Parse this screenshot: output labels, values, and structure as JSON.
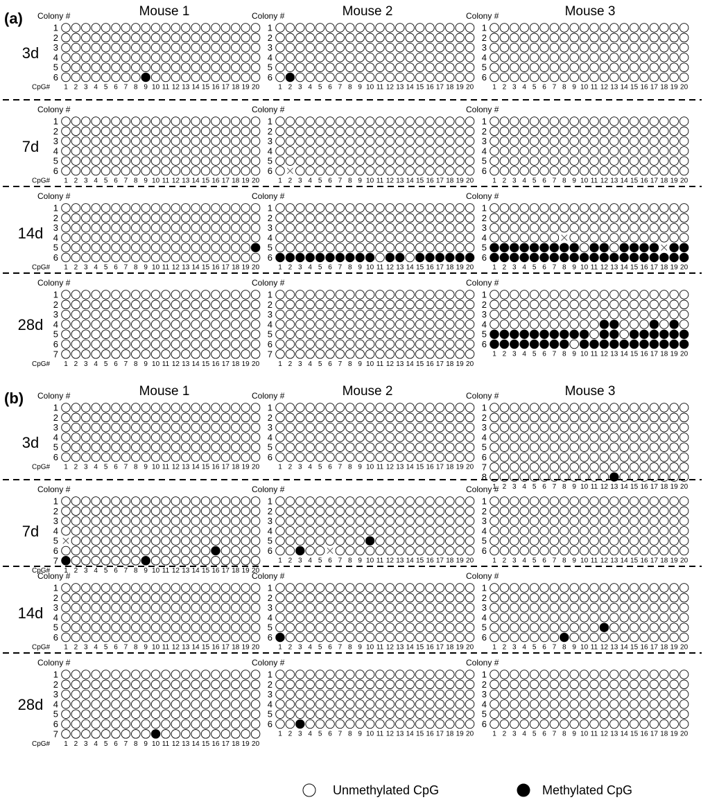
{
  "figure": {
    "colony_label": "Colony #",
    "cpg_label": "CpG#",
    "mouse_labels": [
      "Mouse 1",
      "Mouse 2",
      "Mouse 3"
    ],
    "cpg_sites": 20,
    "legend": {
      "unmethylated": "Unmethylated CpG",
      "methylated": "Methylated CpG"
    },
    "panels": [
      {
        "label": "(a)",
        "blocks": [
          {
            "timepoint": "3d",
            "mice": [
              {
                "colonies": 6,
                "methylated": [
                  [
                    6,
                    9
                  ]
                ],
                "missing": []
              },
              {
                "colonies": 6,
                "methylated": [
                  [
                    6,
                    2
                  ]
                ],
                "missing": []
              },
              {
                "colonies": 6,
                "methylated": [],
                "missing": []
              }
            ]
          },
          {
            "timepoint": "7d",
            "mice": [
              {
                "colonies": 6,
                "methylated": [],
                "missing": []
              },
              {
                "colonies": 6,
                "methylated": [],
                "missing": [
                  [
                    6,
                    2
                  ]
                ]
              },
              {
                "colonies": 6,
                "methylated": [],
                "missing": []
              }
            ]
          },
          {
            "timepoint": "14d",
            "mice": [
              {
                "colonies": 6,
                "methylated": [
                  [
                    5,
                    20
                  ]
                ],
                "missing": []
              },
              {
                "colonies": 6,
                "methylated": [
                  [
                    6,
                    1
                  ],
                  [
                    6,
                    2
                  ],
                  [
                    6,
                    3
                  ],
                  [
                    6,
                    4
                  ],
                  [
                    6,
                    5
                  ],
                  [
                    6,
                    6
                  ],
                  [
                    6,
                    7
                  ],
                  [
                    6,
                    8
                  ],
                  [
                    6,
                    9
                  ],
                  [
                    6,
                    10
                  ],
                  [
                    6,
                    12
                  ],
                  [
                    6,
                    13
                  ],
                  [
                    6,
                    15
                  ],
                  [
                    6,
                    16
                  ],
                  [
                    6,
                    17
                  ],
                  [
                    6,
                    18
                  ],
                  [
                    6,
                    19
                  ],
                  [
                    6,
                    20
                  ]
                ],
                "missing": []
              },
              {
                "colonies": 6,
                "methylated": [
                  [
                    5,
                    1
                  ],
                  [
                    5,
                    2
                  ],
                  [
                    5,
                    3
                  ],
                  [
                    5,
                    4
                  ],
                  [
                    5,
                    5
                  ],
                  [
                    5,
                    6
                  ],
                  [
                    5,
                    7
                  ],
                  [
                    5,
                    8
                  ],
                  [
                    5,
                    9
                  ],
                  [
                    5,
                    11
                  ],
                  [
                    5,
                    12
                  ],
                  [
                    5,
                    14
                  ],
                  [
                    5,
                    15
                  ],
                  [
                    5,
                    16
                  ],
                  [
                    5,
                    17
                  ],
                  [
                    5,
                    19
                  ],
                  [
                    5,
                    20
                  ],
                  [
                    6,
                    1
                  ],
                  [
                    6,
                    2
                  ],
                  [
                    6,
                    3
                  ],
                  [
                    6,
                    4
                  ],
                  [
                    6,
                    5
                  ],
                  [
                    6,
                    6
                  ],
                  [
                    6,
                    7
                  ],
                  [
                    6,
                    8
                  ],
                  [
                    6,
                    9
                  ],
                  [
                    6,
                    10
                  ],
                  [
                    6,
                    11
                  ],
                  [
                    6,
                    12
                  ],
                  [
                    6,
                    13
                  ],
                  [
                    6,
                    14
                  ],
                  [
                    6,
                    15
                  ],
                  [
                    6,
                    16
                  ],
                  [
                    6,
                    17
                  ],
                  [
                    6,
                    18
                  ],
                  [
                    6,
                    19
                  ],
                  [
                    6,
                    20
                  ]
                ],
                "missing": [
                  [
                    4,
                    8
                  ],
                  [
                    5,
                    18
                  ]
                ]
              }
            ]
          },
          {
            "timepoint": "28d",
            "mice": [
              {
                "colonies": 7,
                "methylated": [],
                "missing": []
              },
              {
                "colonies": 7,
                "methylated": [],
                "missing": []
              },
              {
                "colonies": 6,
                "methylated": [
                  [
                    4,
                    12
                  ],
                  [
                    4,
                    13
                  ],
                  [
                    4,
                    17
                  ],
                  [
                    4,
                    19
                  ],
                  [
                    5,
                    1
                  ],
                  [
                    5,
                    2
                  ],
                  [
                    5,
                    3
                  ],
                  [
                    5,
                    4
                  ],
                  [
                    5,
                    5
                  ],
                  [
                    5,
                    6
                  ],
                  [
                    5,
                    7
                  ],
                  [
                    5,
                    8
                  ],
                  [
                    5,
                    9
                  ],
                  [
                    5,
                    10
                  ],
                  [
                    5,
                    12
                  ],
                  [
                    5,
                    13
                  ],
                  [
                    5,
                    15
                  ],
                  [
                    5,
                    16
                  ],
                  [
                    5,
                    17
                  ],
                  [
                    5,
                    18
                  ],
                  [
                    5,
                    19
                  ],
                  [
                    5,
                    20
                  ],
                  [
                    6,
                    1
                  ],
                  [
                    6,
                    2
                  ],
                  [
                    6,
                    3
                  ],
                  [
                    6,
                    4
                  ],
                  [
                    6,
                    5
                  ],
                  [
                    6,
                    6
                  ],
                  [
                    6,
                    7
                  ],
                  [
                    6,
                    8
                  ],
                  [
                    6,
                    10
                  ],
                  [
                    6,
                    11
                  ],
                  [
                    6,
                    12
                  ],
                  [
                    6,
                    13
                  ],
                  [
                    6,
                    14
                  ],
                  [
                    6,
                    15
                  ],
                  [
                    6,
                    16
                  ],
                  [
                    6,
                    17
                  ],
                  [
                    6,
                    18
                  ],
                  [
                    6,
                    19
                  ],
                  [
                    6,
                    20
                  ]
                ],
                "missing": []
              }
            ]
          }
        ]
      },
      {
        "label": "(b)",
        "blocks": [
          {
            "timepoint": "3d",
            "mice": [
              {
                "colonies": 6,
                "methylated": [],
                "missing": []
              },
              {
                "colonies": 6,
                "methylated": [],
                "missing": []
              },
              {
                "colonies": 8,
                "methylated": [
                  [
                    8,
                    13
                  ]
                ],
                "missing": []
              }
            ]
          },
          {
            "timepoint": "7d",
            "mice": [
              {
                "colonies": 7,
                "methylated": [
                  [
                    6,
                    16
                  ],
                  [
                    7,
                    1
                  ],
                  [
                    7,
                    9
                  ]
                ],
                "missing": [
                  [
                    5,
                    1
                  ]
                ]
              },
              {
                "colonies": 6,
                "methylated": [
                  [
                    5,
                    10
                  ],
                  [
                    6,
                    3
                  ]
                ],
                "missing": [
                  [
                    6,
                    6
                  ]
                ]
              },
              {
                "colonies": 6,
                "methylated": [],
                "missing": []
              }
            ]
          },
          {
            "timepoint": "14d",
            "mice": [
              {
                "colonies": 6,
                "methylated": [],
                "missing": []
              },
              {
                "colonies": 6,
                "methylated": [
                  [
                    6,
                    1
                  ]
                ],
                "missing": []
              },
              {
                "colonies": 6,
                "methylated": [
                  [
                    5,
                    12
                  ],
                  [
                    6,
                    8
                  ]
                ],
                "missing": []
              }
            ]
          },
          {
            "timepoint": "28d",
            "mice": [
              {
                "colonies": 7,
                "methylated": [
                  [
                    7,
                    10
                  ]
                ],
                "missing": []
              },
              {
                "colonies": 6,
                "methylated": [
                  [
                    6,
                    3
                  ]
                ],
                "missing": []
              },
              {
                "colonies": 6,
                "methylated": [],
                "missing": []
              }
            ]
          }
        ]
      }
    ]
  }
}
